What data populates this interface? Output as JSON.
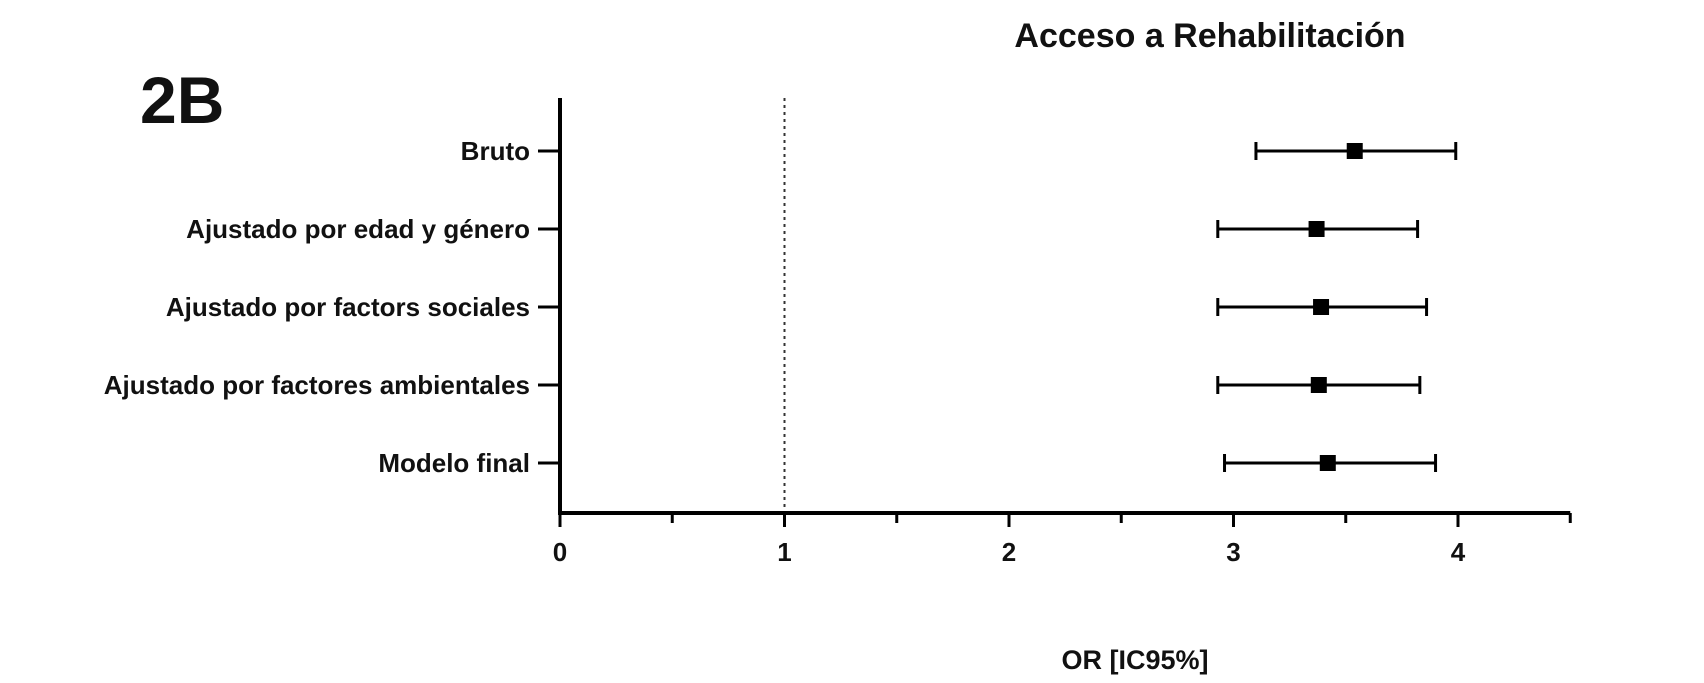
{
  "panel_label": "2B",
  "chart_data": {
    "type": "forest",
    "title": "Acceso a Rehabilitación",
    "xlabel": "OR [IC95%]",
    "ylabel": "",
    "xlim": [
      0,
      4.5
    ],
    "x_ticks": [
      0,
      1,
      2,
      3,
      4
    ],
    "x_minor_ticks": [
      0.5,
      1.5,
      2.5,
      3.5,
      4.5
    ],
    "reference_line": 1,
    "grid": false,
    "categories": [
      "Bruto",
      "Ajustado por edad y género",
      "Ajustado por factors sociales",
      "Ajustado por factores ambientales",
      "Modelo final"
    ],
    "estimates": [
      3.54,
      3.37,
      3.39,
      3.38,
      3.42
    ],
    "ci_lower": [
      3.1,
      2.93,
      2.93,
      2.93,
      2.96
    ],
    "ci_upper": [
      3.99,
      3.82,
      3.86,
      3.83,
      3.9
    ]
  },
  "colors": {
    "marker": "#000000",
    "axis": "#000000",
    "reference_line": "#333333"
  }
}
